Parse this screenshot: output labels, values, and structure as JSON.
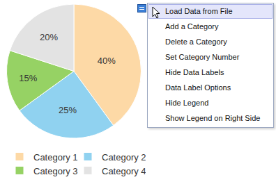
{
  "chart_data": {
    "type": "pie",
    "categories": [
      "Category 1",
      "Category 2",
      "Category 3",
      "Category 4"
    ],
    "values": [
      40,
      25,
      15,
      20
    ],
    "value_labels": [
      "40%",
      "25%",
      "15%",
      "20%"
    ],
    "colors": [
      "#fdd9a6",
      "#90d2f0",
      "#96d264",
      "#e3e3e3"
    ],
    "data_labels": true,
    "legend": "bottom"
  },
  "menu": {
    "items": [
      "Load Data from File",
      "Add a Category",
      "Delete a Category",
      "Set Category Number",
      "Hide Data Labels",
      "Data Label Options",
      "Hide Legend",
      "Show Legend on Right Side"
    ]
  }
}
